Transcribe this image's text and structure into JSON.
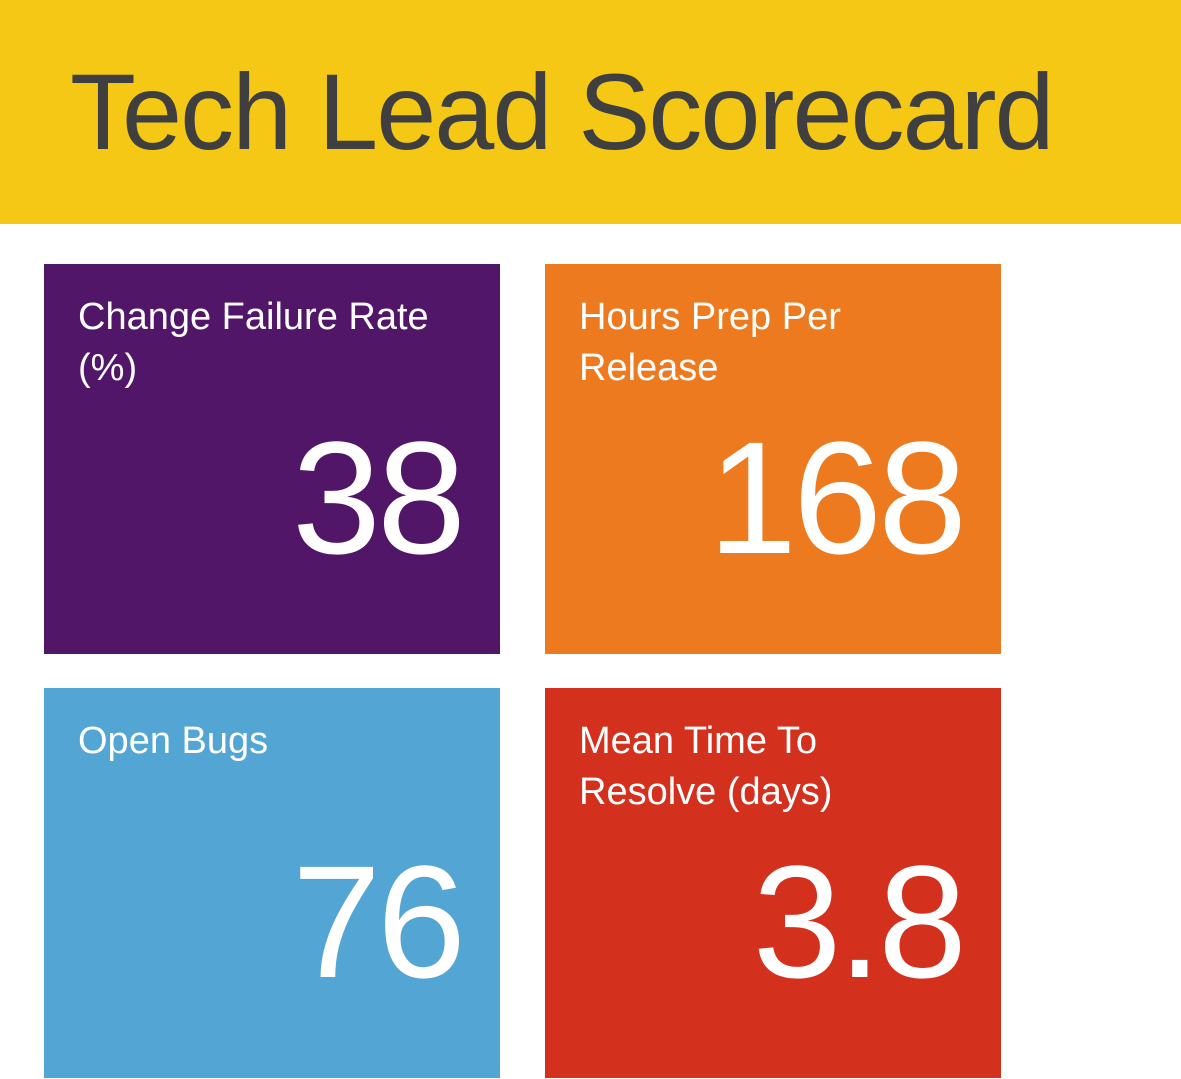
{
  "header": {
    "title": "Tech Lead Scorecard",
    "color": "#f5c815"
  },
  "tiles": [
    {
      "label": "Change Failure Rate (%)",
      "value": 38,
      "color": "#521669"
    },
    {
      "label": "Hours Prep Per Release",
      "value": 168,
      "color": "#ee7a1f"
    },
    {
      "label": "Open Bugs",
      "value": 76,
      "color": "#53a5d4"
    },
    {
      "label": "Mean Time To Resolve (days)",
      "value": 3.8,
      "color": "#d4301e"
    }
  ]
}
